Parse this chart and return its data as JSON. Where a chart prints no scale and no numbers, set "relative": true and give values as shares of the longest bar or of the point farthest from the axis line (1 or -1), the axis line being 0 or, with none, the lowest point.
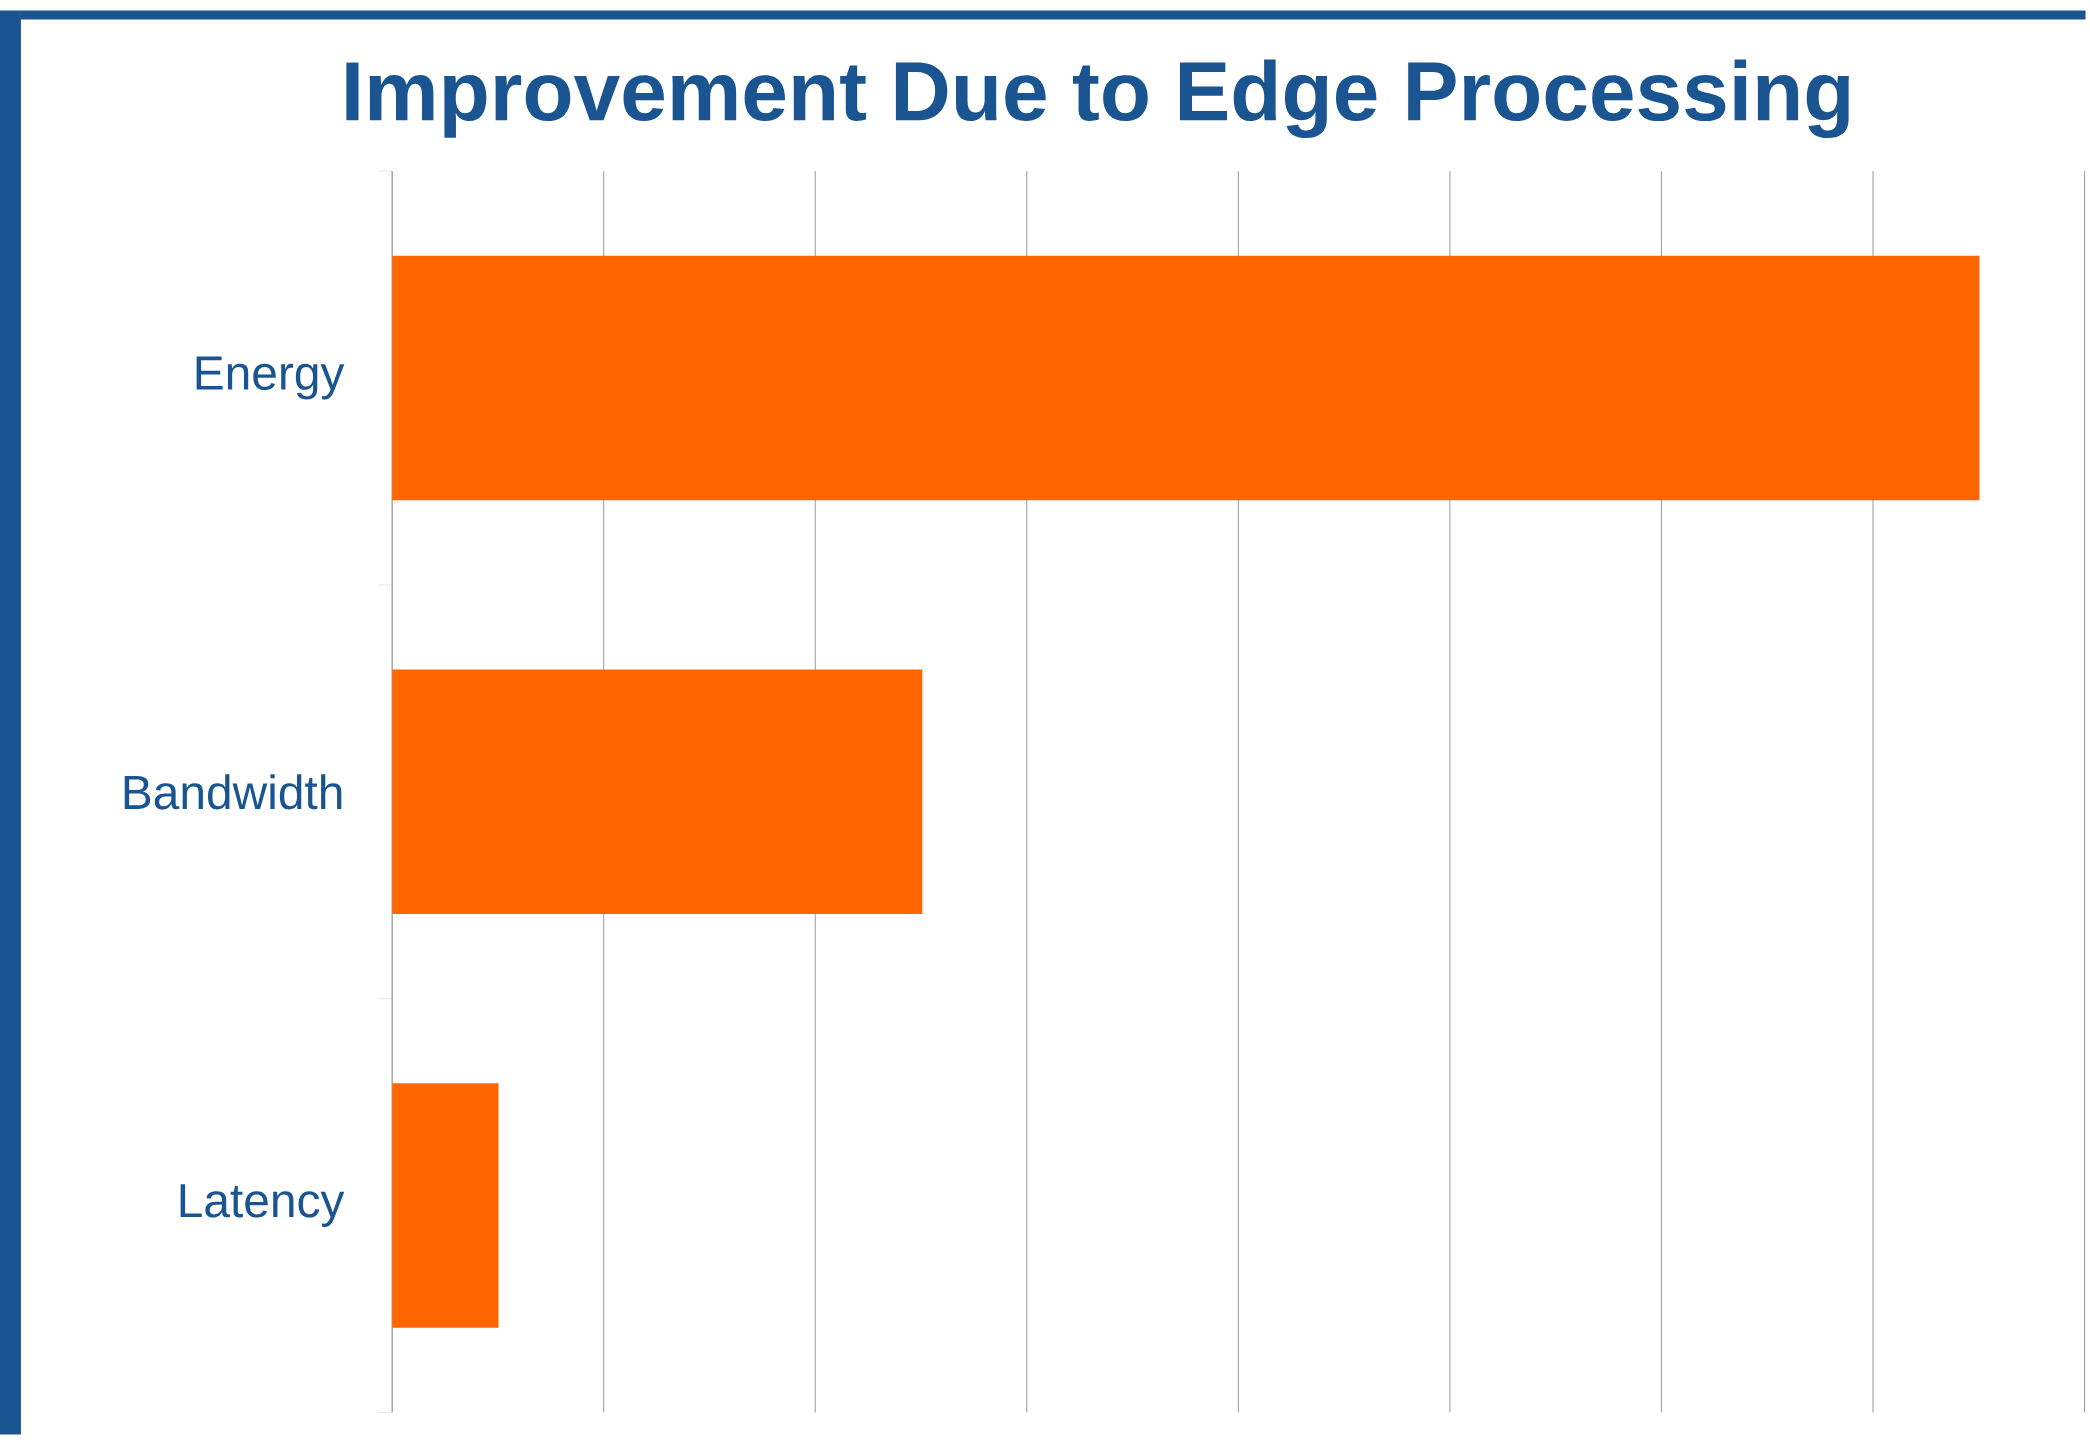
{
  "chart_data": {
    "type": "bar",
    "orientation": "horizontal",
    "relative": true,
    "title": "Improvement Due to Edge Processing",
    "categories": [
      "Energy",
      "Bandwidth",
      "Latency"
    ],
    "values": [
      1,
      0.334,
      0.067
    ],
    "color": "#ff6600",
    "grid": "x"
  }
}
